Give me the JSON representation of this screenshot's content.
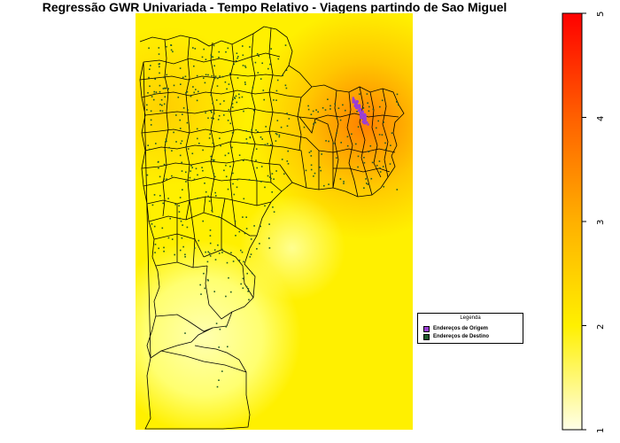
{
  "title": "Regressão GWR Univariada - Tempo Relativo - Viagens partindo de Sao Miguel",
  "legend": {
    "title": "Legenda",
    "items": [
      {
        "label": "Endereços de Origem",
        "color": "#9b3fd6"
      },
      {
        "label": "Endereços de Destino",
        "color": "#1f5a2a"
      }
    ]
  },
  "color_scale": {
    "ticks": [
      "1",
      "2",
      "3",
      "4",
      "5"
    ],
    "min_value": 1,
    "max_value": 5,
    "colors": [
      "#ffffe8",
      "#fff000",
      "#ffb000",
      "#ff5000",
      "#ff0000"
    ]
  },
  "map": {
    "background_colors": [
      "#ffffc0",
      "#fff000",
      "#ffc800",
      "#ff8000"
    ],
    "boundary_color": "#000000",
    "origin_point_color": "#9b3fd6",
    "destination_point_color": "#1f5a2a"
  }
}
